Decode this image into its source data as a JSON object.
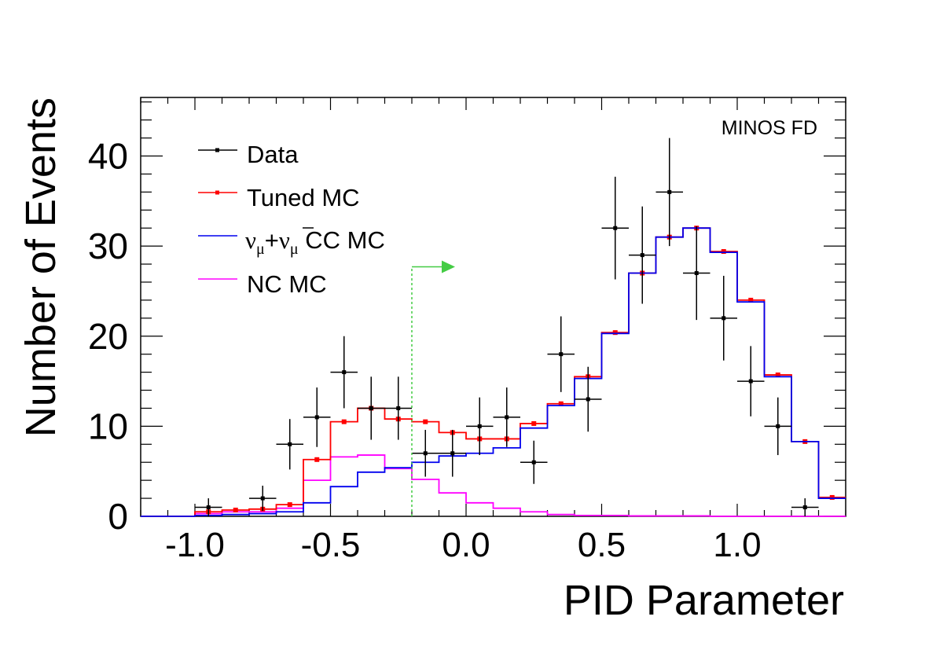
{
  "chart_data": {
    "type": "histogram",
    "annotation": "MINOS FD",
    "xlabel": "PID Parameter",
    "ylabel": "Number of Events",
    "xlim": [
      -1.2,
      1.4
    ],
    "ylim": [
      0,
      46.5
    ],
    "grid": false,
    "legend_position": "top-left",
    "x_ticks": [
      -1.0,
      -0.5,
      0.0,
      0.5,
      1.0
    ],
    "x_tick_labels": [
      "-1.0",
      "-0.5",
      "0.0",
      "0.5",
      "1.0"
    ],
    "y_ticks": [
      0,
      10,
      20,
      30,
      40
    ],
    "y_tick_labels": [
      "0",
      "10",
      "20",
      "30",
      "40"
    ],
    "bin_edges": [
      -1.2,
      -1.1,
      -1.0,
      -0.9,
      -0.8,
      -0.7,
      -0.6,
      -0.5,
      -0.4,
      -0.3,
      -0.2,
      -0.1,
      0.0,
      0.1,
      0.2,
      0.3,
      0.4,
      0.5,
      0.6,
      0.7,
      0.8,
      0.9,
      1.0,
      1.1,
      1.2,
      1.3,
      1.4
    ],
    "cut": {
      "x": -0.2,
      "y": 27.7,
      "color": "#44cc44"
    },
    "legend": [
      {
        "key": "data",
        "label": "Data"
      },
      {
        "key": "tuned",
        "label": "Tuned MC"
      },
      {
        "key": "cc",
        "label_main": "ν",
        "label_sub": "μ",
        "label_plus": "+",
        "label_main2": "ν",
        "label_sub2": "μ",
        "label_rest": " CC MC"
      },
      {
        "key": "nc",
        "label": "NC MC"
      }
    ],
    "series": [
      {
        "key": "data",
        "name": "Data",
        "color": "#000000",
        "style": "points-with-errors",
        "x": [
          -0.95,
          -0.75,
          -0.65,
          -0.55,
          -0.45,
          -0.35,
          -0.25,
          -0.15,
          -0.05,
          0.05,
          0.15,
          0.25,
          0.35,
          0.45,
          0.55,
          0.65,
          0.75,
          0.85,
          0.95,
          1.05,
          1.15,
          1.25
        ],
        "values": [
          1,
          2,
          8,
          11,
          16,
          12,
          12,
          7,
          7,
          10,
          11,
          6,
          18,
          13,
          32,
          29,
          36,
          27,
          22,
          15,
          10,
          1
        ],
        "errors": [
          1.0,
          1.4,
          2.8,
          3.3,
          4.0,
          3.5,
          3.5,
          2.6,
          2.6,
          3.2,
          3.3,
          2.4,
          4.2,
          3.6,
          5.7,
          5.4,
          6.0,
          5.2,
          4.7,
          3.9,
          3.2,
          1.0
        ]
      },
      {
        "key": "tuned",
        "name": "Tuned MC",
        "color": "#ff0000",
        "style": "step-with-points",
        "values": [
          0,
          0,
          0.5,
          0.7,
          0.8,
          1.3,
          6.3,
          10.5,
          12.0,
          10.8,
          10.5,
          9.3,
          8.6,
          8.6,
          10.3,
          12.5,
          15.5,
          20.4,
          27.0,
          31.0,
          32.0,
          29.4,
          24.0,
          15.7,
          8.3,
          2.1
        ]
      },
      {
        "key": "cc",
        "name": "ν_μ + ν̄_μ CC MC",
        "color": "#0000ee",
        "style": "step",
        "values": [
          0,
          0,
          0.1,
          0.2,
          0.3,
          0.5,
          1.5,
          3.3,
          4.9,
          5.4,
          6.0,
          6.7,
          7.0,
          7.6,
          9.8,
          12.3,
          15.3,
          20.3,
          27.0,
          31.0,
          32.0,
          29.3,
          23.8,
          15.5,
          8.3,
          2.0
        ]
      },
      {
        "key": "nc",
        "name": "NC MC",
        "color": "#ff00ff",
        "style": "step",
        "values": [
          0,
          0,
          0.3,
          0.5,
          0.5,
          0.9,
          4.0,
          6.6,
          6.8,
          5.3,
          4.1,
          2.6,
          1.5,
          0.9,
          0.5,
          0.2,
          0.1,
          0.1,
          0.05,
          0.05,
          0.05,
          0,
          0,
          0,
          0,
          0
        ]
      }
    ]
  }
}
